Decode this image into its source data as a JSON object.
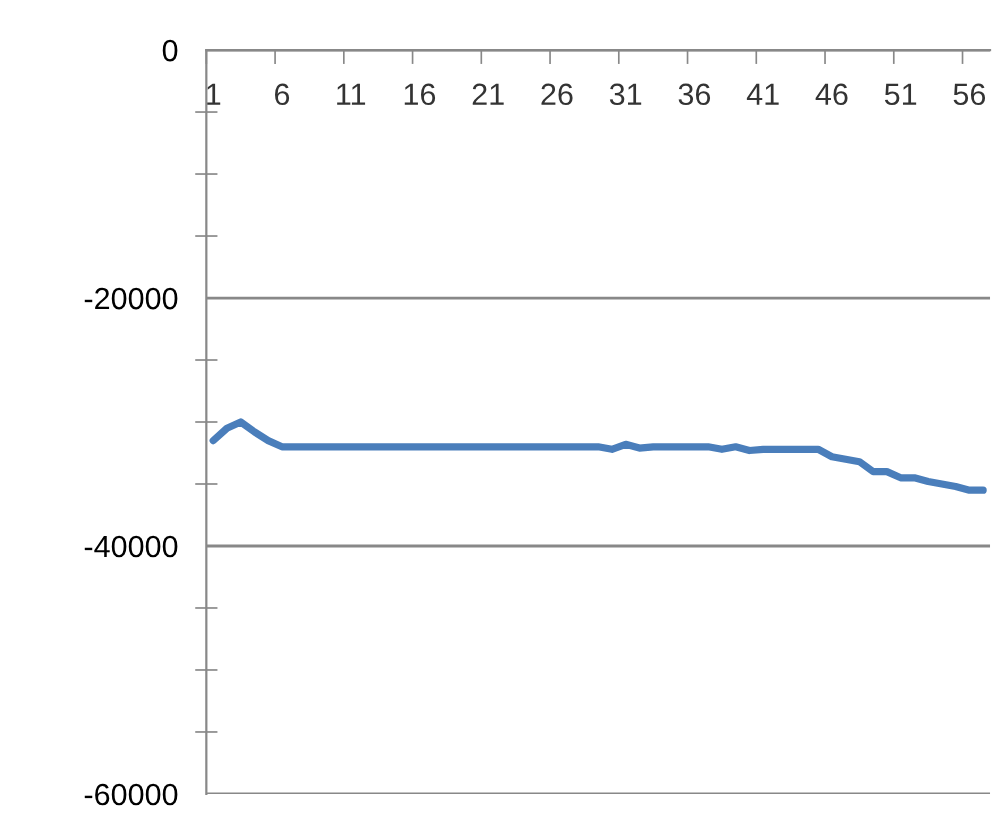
{
  "chart_data": {
    "type": "line",
    "categories": [
      "1",
      null,
      null,
      null,
      null,
      "6",
      null,
      null,
      null,
      null,
      "11",
      null,
      null,
      null,
      null,
      "16",
      null,
      null,
      null,
      null,
      "21",
      null,
      null,
      null,
      null,
      "26",
      null,
      null,
      null,
      null,
      "31",
      null,
      null,
      null,
      null,
      "36",
      null,
      null,
      null,
      null,
      "41",
      null,
      null,
      null,
      null,
      "46",
      null,
      null,
      null,
      null,
      "51",
      null,
      null,
      null,
      null,
      "56",
      null
    ],
    "series": [
      {
        "color": "#4a7ebb",
        "values": [
          -31500,
          -30500,
          -30000,
          -30800,
          -31500,
          -32000,
          -32000,
          -32000,
          -32000,
          -32000,
          -32000,
          -32000,
          -32000,
          -32000,
          -32000,
          -32000,
          -32000,
          -32000,
          -32000,
          -32000,
          -32000,
          -32000,
          -32000,
          -32000,
          -32000,
          -32000,
          -32000,
          -32000,
          -32000,
          -32200,
          -31800,
          -32100,
          -32000,
          -32000,
          -32000,
          -32000,
          -32000,
          -32200,
          -32000,
          -32300,
          -32200,
          -32200,
          -32200,
          -32200,
          -32200,
          -32800,
          -33000,
          -33200,
          -34000,
          -34000,
          -34500,
          -34500,
          -34800,
          -35000,
          -35200,
          -35500,
          -35500
        ]
      }
    ],
    "ylim": [
      -60000,
      0
    ],
    "yticks": [
      -60000,
      -40000,
      -20000,
      0
    ],
    "grid": "y",
    "marker": "none",
    "line_style": "solid"
  }
}
